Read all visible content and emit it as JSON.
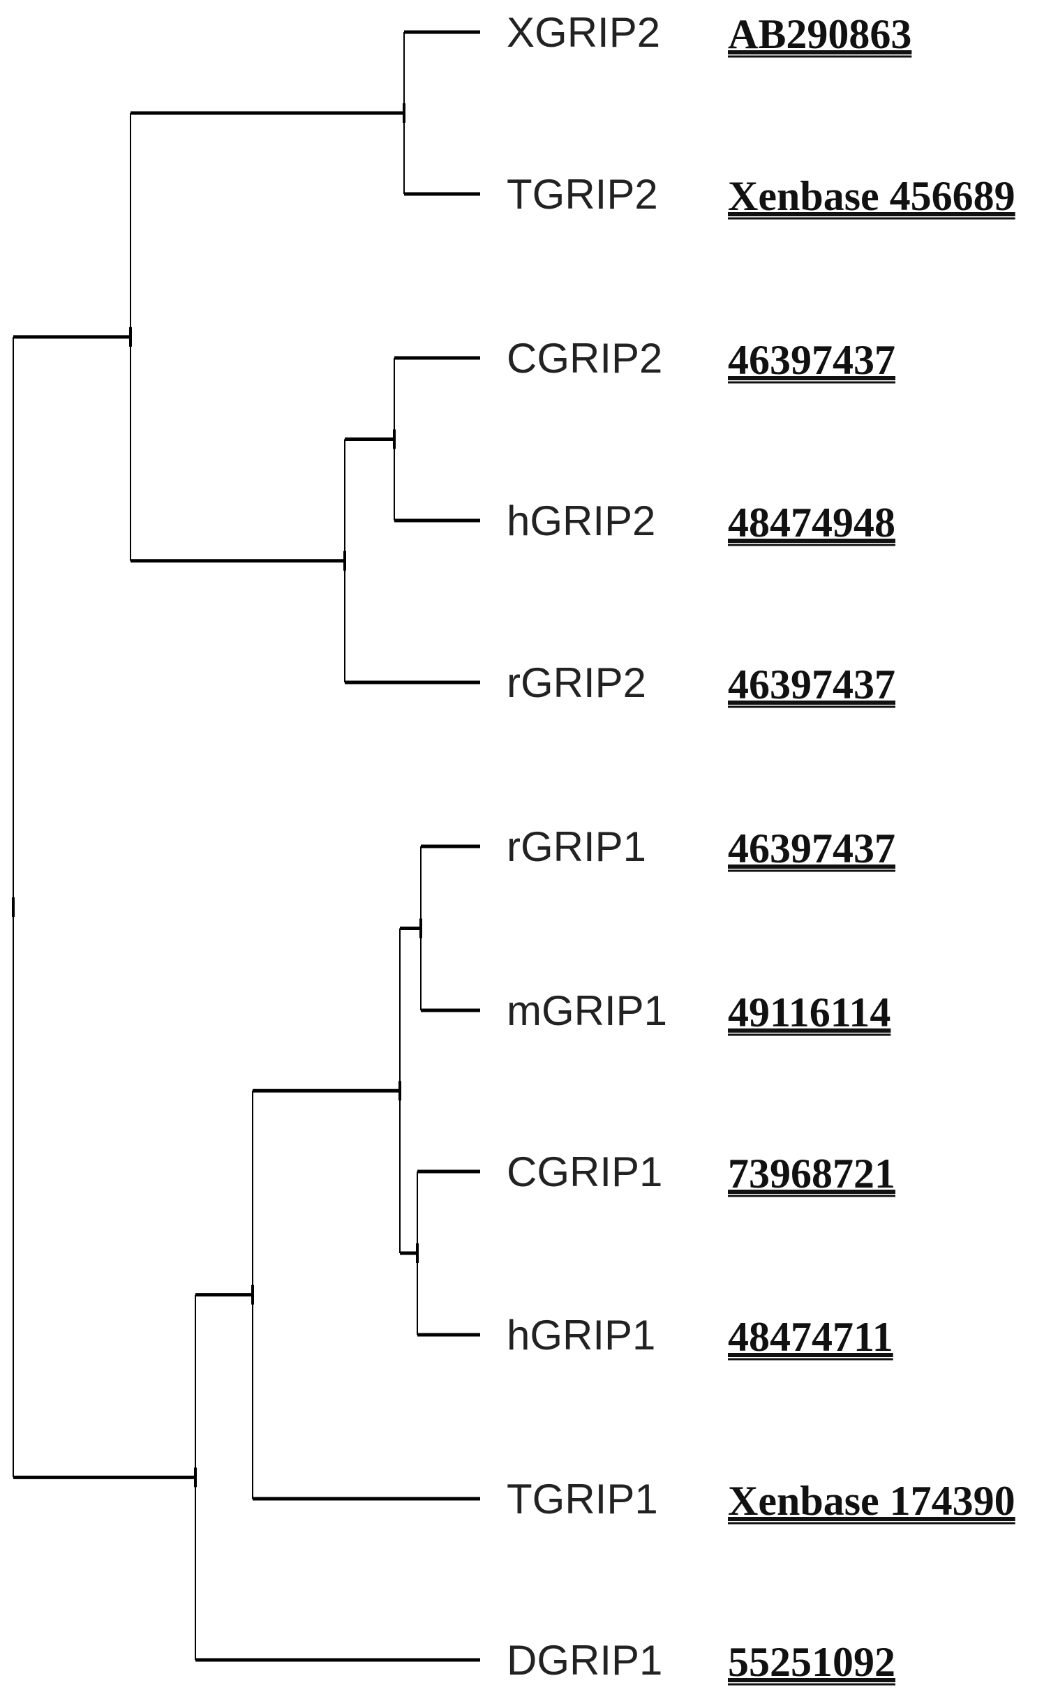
{
  "tree": {
    "children": [
      {
        "children": [
          {
            "children": [
              {
                "leaf": 0
              },
              {
                "leaf": 1
              }
            ]
          },
          {
            "children": [
              {
                "children": [
                  {
                    "leaf": 2
                  },
                  {
                    "leaf": 3
                  }
                ]
              },
              {
                "leaf": 4
              }
            ]
          }
        ]
      },
      {
        "children": [
          {
            "children": [
              {
                "children": [
                  {
                    "children": [
                      {
                        "leaf": 5
                      },
                      {
                        "leaf": 6
                      }
                    ]
                  },
                  {
                    "children": [
                      {
                        "leaf": 7
                      },
                      {
                        "leaf": 8
                      }
                    ]
                  }
                ]
              },
              {
                "leaf": 9
              }
            ]
          },
          {
            "leaf": 10
          }
        ]
      }
    ]
  },
  "leaves": [
    {
      "name": "XGRIP2",
      "accession": "AB290863"
    },
    {
      "name": "TGRIP2",
      "accession": "Xenbase 456689"
    },
    {
      "name": "CGRIP2",
      "accession": "46397437"
    },
    {
      "name": "hGRIP2",
      "accession": "48474948"
    },
    {
      "name": "rGRIP2",
      "accession": "46397437"
    },
    {
      "name": "rGRIP1",
      "accession": "46397437"
    },
    {
      "name": "mGRIP1",
      "accession": "49116114"
    },
    {
      "name": "CGRIP1",
      "accession": "73968721"
    },
    {
      "name": "hGRIP1",
      "accession": "48474711"
    },
    {
      "name": "TGRIP1",
      "accession": "Xenbase 174390"
    },
    {
      "name": "DGRIP1",
      "accession": "55251092"
    }
  ],
  "colors": {
    "line": "#000000",
    "label": "#222222"
  }
}
